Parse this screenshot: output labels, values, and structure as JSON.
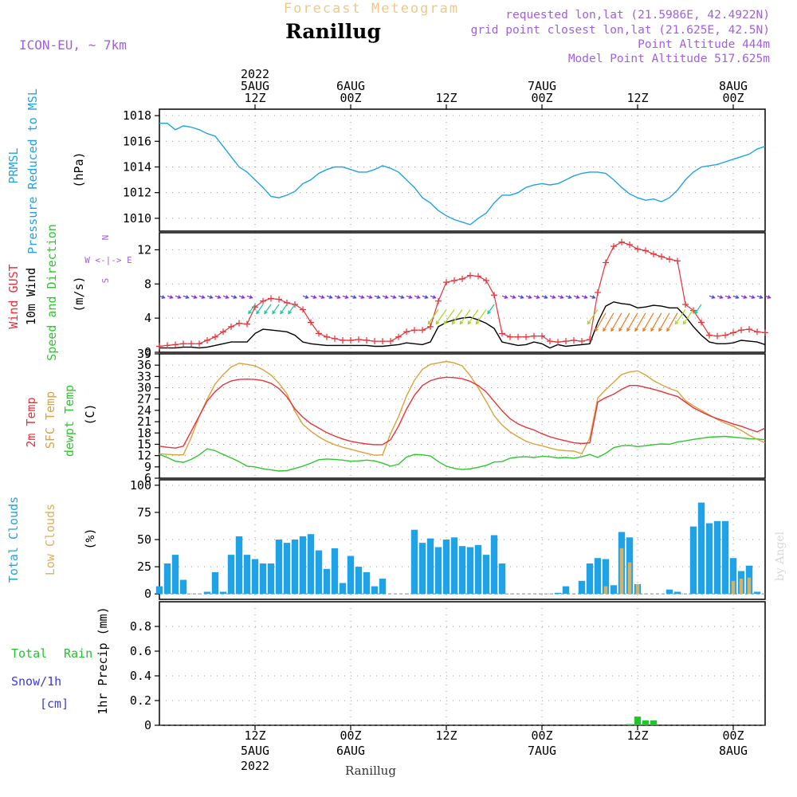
{
  "header": {
    "product_title": "Forecast Meteogram",
    "location": "Ranillug",
    "model": "ICON-EU, ~ 7km",
    "requested": "requested lon,lat (21.5986E, 42.4922N)",
    "gridpoint": "grid point closest lon,lat (21.625E, 42.5N)",
    "point_alt": "Point Altitude 444m",
    "model_alt": "Model Point Altitude 517.625m",
    "footer_location": "Ranillug",
    "credit": "by Angel"
  },
  "colors": {
    "pressure": "#1fa3e6",
    "gust": "#e8333a",
    "wind10m": "#000000",
    "t2m": "#e8333a",
    "sfc": "#dca23c",
    "dewpt": "#2ec82e",
    "total_clouds": "#1fa3e6",
    "low_clouds": "#d9b060",
    "rain": "#22c42e",
    "snow": "#3b3bdd",
    "purple_text": "#a060e0",
    "grid": "#999999"
  },
  "time_axis": {
    "top_labels": [
      {
        "hour": 12,
        "lines": [
          "2022",
          "5AUG",
          "12Z"
        ]
      },
      {
        "hour": 24,
        "lines": [
          "6AUG",
          "00Z"
        ]
      },
      {
        "hour": 36,
        "lines": [
          "12Z"
        ]
      },
      {
        "hour": 48,
        "lines": [
          "7AUG",
          "00Z"
        ]
      },
      {
        "hour": 60,
        "lines": [
          "12Z"
        ]
      },
      {
        "hour": 72,
        "lines": [
          "8AUG",
          "00Z"
        ]
      }
    ],
    "bottom_labels": [
      {
        "hour": 12,
        "lines": [
          "12Z",
          "5AUG",
          "2022"
        ]
      },
      {
        "hour": 24,
        "lines": [
          "00Z",
          "6AUG"
        ]
      },
      {
        "hour": 36,
        "lines": [
          "12Z"
        ]
      },
      {
        "hour": 48,
        "lines": [
          "00Z",
          "7AUG"
        ]
      },
      {
        "hour": 60,
        "lines": [
          "12Z"
        ]
      },
      {
        "hour": 72,
        "lines": [
          "00Z",
          "8AUG"
        ]
      }
    ],
    "range_hours": [
      0,
      76
    ]
  },
  "panel_labels": {
    "pressure": {
      "lines": [
        "PRMSL",
        "Pressure Reduced to MSL"
      ],
      "unit": "(hPa)"
    },
    "wind": {
      "gust": "Wind GUST",
      "w10": "10m Wind",
      "dir": "Speed and Direction",
      "unit": "(m/s)",
      "compass_n": "N",
      "compass_s": "S",
      "compass_row": "W <-|-> E"
    },
    "temp": {
      "t2m": "2m Temp",
      "sfc": "SFC Temp",
      "dew": "dewpt Temp",
      "unit": "(C)"
    },
    "clouds": {
      "total": "Total Clouds",
      "low": "Low Clouds",
      "unit": "(%)"
    },
    "precip": {
      "unit": "1hr Precip (mm)",
      "rain_a": "Total",
      "rain_b": "Rain",
      "snow": "Snow/1h",
      "snow_unit": "[cm]"
    }
  },
  "chart_data": [
    {
      "type": "line",
      "name": "pressure",
      "ylim": [
        1009,
        1018.5
      ],
      "yticks": [
        1010,
        1012,
        1014,
        1016,
        1018
      ],
      "x": [
        0,
        1,
        2,
        3,
        4,
        5,
        6,
        7,
        8,
        9,
        10,
        11,
        12,
        13,
        14,
        15,
        16,
        17,
        18,
        19,
        20,
        21,
        22,
        23,
        24,
        25,
        26,
        27,
        28,
        29,
        30,
        31,
        32,
        33,
        34,
        35,
        36,
        37,
        38,
        39,
        40,
        41,
        42,
        43,
        44,
        45,
        46,
        47,
        48,
        49,
        50,
        51,
        52,
        53,
        54,
        55,
        56,
        57,
        58,
        59,
        60,
        61,
        62,
        63,
        64,
        65,
        66,
        67,
        68,
        69,
        70,
        71,
        72,
        73,
        74,
        75,
        76
      ],
      "y": [
        1017.4,
        1017.4,
        1016.9,
        1017.2,
        1017.1,
        1016.9,
        1016.6,
        1016.4,
        1015.6,
        1014.8,
        1014.0,
        1013.6,
        1013.0,
        1012.4,
        1011.7,
        1011.6,
        1011.8,
        1012.1,
        1012.7,
        1013.0,
        1013.5,
        1013.8,
        1014.0,
        1014.0,
        1013.8,
        1013.6,
        1013.6,
        1013.8,
        1014.1,
        1013.9,
        1013.6,
        1013.0,
        1012.4,
        1011.6,
        1011.2,
        1010.6,
        1010.2,
        1009.9,
        1009.7,
        1009.5,
        1010.0,
        1010.4,
        1011.2,
        1011.8,
        1011.8,
        1012.0,
        1012.4,
        1012.6,
        1012.7,
        1012.6,
        1012.7,
        1013.0,
        1013.3,
        1013.5,
        1013.6,
        1013.6,
        1013.5,
        1013.0,
        1012.4,
        1011.9,
        1011.6,
        1011.4,
        1011.5,
        1011.3,
        1011.6,
        1012.2,
        1013.0,
        1013.6,
        1014.0,
        1014.1,
        1014.2,
        1014.4,
        1014.6,
        1014.8,
        1015.0,
        1015.4,
        1015.6
      ]
    },
    {
      "type": "line",
      "name": "wind",
      "ylim": [
        0,
        14
      ],
      "yticks": [
        0,
        4,
        8,
        12
      ],
      "x": [
        0,
        1,
        2,
        3,
        4,
        5,
        6,
        7,
        8,
        9,
        10,
        11,
        12,
        13,
        14,
        15,
        16,
        17,
        18,
        19,
        20,
        21,
        22,
        23,
        24,
        25,
        26,
        27,
        28,
        29,
        30,
        31,
        32,
        33,
        34,
        35,
        36,
        37,
        38,
        39,
        40,
        41,
        42,
        43,
        44,
        45,
        46,
        47,
        48,
        49,
        50,
        51,
        52,
        53,
        54,
        55,
        56,
        57,
        58,
        59,
        60,
        61,
        62,
        63,
        64,
        65,
        66,
        67,
        68,
        69,
        70,
        71,
        72,
        73,
        74,
        75,
        76
      ],
      "gust": [
        0.7,
        0.8,
        0.9,
        1.0,
        1.0,
        1.0,
        1.4,
        1.8,
        2.4,
        3.0,
        3.4,
        3.3,
        5.3,
        6.0,
        6.3,
        6.2,
        5.8,
        5.6,
        5.0,
        3.5,
        2.2,
        1.8,
        1.6,
        1.4,
        1.4,
        1.5,
        1.4,
        1.3,
        1.3,
        1.3,
        1.8,
        2.4,
        2.6,
        2.6,
        3.0,
        6.0,
        8.2,
        8.4,
        8.6,
        9.0,
        8.9,
        8.4,
        6.7,
        2.2,
        1.8,
        1.8,
        1.8,
        1.9,
        1.9,
        1.3,
        1.2,
        1.3,
        1.4,
        1.3,
        1.5,
        7.0,
        10.5,
        12.4,
        12.9,
        12.6,
        12.1,
        11.9,
        11.5,
        11.2,
        10.9,
        10.7,
        5.6,
        4.9,
        3.5,
        2.0,
        1.9,
        2.0,
        2.3,
        2.6,
        2.7,
        2.4,
        2.3
      ],
      "wind10m": [
        0.5,
        0.5,
        0.5,
        0.6,
        0.6,
        0.5,
        0.6,
        0.8,
        1.0,
        1.2,
        1.2,
        1.2,
        2.2,
        2.7,
        2.6,
        2.5,
        2.4,
        2.0,
        1.2,
        1.0,
        0.9,
        0.8,
        0.8,
        0.8,
        0.8,
        0.8,
        0.8,
        0.7,
        0.7,
        0.8,
        0.9,
        1.1,
        1.0,
        0.9,
        1.2,
        3.0,
        3.5,
        3.8,
        4.0,
        4.1,
        3.8,
        3.4,
        2.8,
        1.2,
        1.0,
        0.8,
        0.9,
        1.2,
        1.0,
        0.5,
        0.9,
        0.7,
        0.8,
        0.9,
        1.0,
        3.5,
        5.4,
        5.9,
        5.7,
        5.6,
        5.2,
        5.3,
        5.5,
        5.4,
        5.2,
        5.2,
        4.2,
        3.0,
        2.0,
        1.2,
        1.0,
        1.0,
        1.1,
        1.4,
        1.3,
        1.2,
        0.9
      ]
    },
    {
      "type": "line",
      "name": "temperature",
      "ylim": [
        6,
        39
      ],
      "yticks": [
        6,
        9,
        12,
        15,
        18,
        21,
        24,
        27,
        30,
        33,
        36,
        39
      ],
      "x": [
        0,
        1,
        2,
        3,
        4,
        5,
        6,
        7,
        8,
        9,
        10,
        11,
        12,
        13,
        14,
        15,
        16,
        17,
        18,
        19,
        20,
        21,
        22,
        23,
        24,
        25,
        26,
        27,
        28,
        29,
        30,
        31,
        32,
        33,
        34,
        35,
        36,
        37,
        38,
        39,
        40,
        41,
        42,
        43,
        44,
        45,
        46,
        47,
        48,
        49,
        50,
        51,
        52,
        53,
        54,
        55,
        56,
        57,
        58,
        59,
        60,
        61,
        62,
        63,
        64,
        65,
        66,
        67,
        68,
        69,
        70,
        71,
        72,
        73,
        74,
        75,
        76
      ],
      "t2m": [
        14.5,
        14.2,
        14.0,
        14.5,
        18.5,
        22.5,
        26.5,
        29.0,
        30.8,
        31.8,
        32.2,
        32.3,
        32.2,
        31.9,
        31.2,
        29.8,
        27.6,
        24.4,
        22.2,
        20.5,
        19.3,
        18.1,
        17.2,
        16.4,
        15.8,
        15.4,
        15.1,
        14.9,
        14.9,
        16.2,
        19.8,
        24.3,
        28.0,
        30.6,
        31.9,
        32.5,
        32.8,
        32.7,
        32.4,
        31.7,
        30.6,
        28.9,
        26.4,
        23.9,
        21.8,
        20.4,
        19.5,
        18.8,
        17.8,
        17.0,
        16.4,
        15.9,
        15.4,
        15.2,
        15.4,
        26.2,
        27.4,
        28.3,
        29.6,
        30.6,
        30.6,
        30.1,
        29.6,
        29.0,
        28.3,
        27.7,
        26.2,
        24.7,
        23.6,
        22.6,
        21.8,
        21.1,
        20.4,
        19.8,
        19.0,
        18.3,
        19.3
      ],
      "sfc": [
        12.5,
        12.3,
        12.2,
        12.2,
        16.8,
        22.5,
        27.0,
        31.0,
        33.5,
        35.5,
        36.5,
        36.2,
        35.8,
        34.8,
        33.4,
        31.2,
        28.4,
        23.8,
        20.3,
        18.5,
        17.0,
        15.8,
        14.9,
        14.2,
        13.7,
        13.1,
        12.6,
        12.1,
        12.2,
        17.8,
        22.3,
        27.8,
        32.0,
        34.9,
        36.2,
        36.6,
        37.0,
        36.6,
        35.8,
        33.2,
        30.0,
        26.4,
        22.6,
        20.1,
        18.3,
        17.0,
        15.8,
        15.1,
        14.6,
        14.0,
        13.5,
        13.3,
        13.2,
        12.5,
        16.7,
        27.3,
        29.5,
        31.5,
        33.5,
        34.2,
        34.5,
        33.4,
        31.9,
        30.8,
        29.8,
        29.1,
        26.6,
        25.2,
        24.0,
        22.8,
        21.6,
        20.6,
        19.8,
        18.7,
        17.4,
        16.3,
        15.4
      ],
      "dewpt": [
        12.3,
        11.5,
        10.5,
        10.2,
        11.0,
        12.2,
        13.8,
        13.3,
        12.3,
        11.4,
        10.4,
        9.2,
        9.0,
        8.5,
        8.2,
        7.9,
        8.0,
        8.6,
        9.2,
        10.0,
        10.9,
        11.1,
        11.0,
        10.8,
        10.5,
        10.6,
        10.8,
        10.6,
        10.0,
        9.2,
        9.7,
        11.6,
        12.3,
        12.2,
        11.9,
        10.4,
        9.2,
        8.6,
        8.3,
        8.5,
        8.9,
        9.4,
        10.3,
        10.4,
        11.3,
        11.6,
        11.7,
        11.5,
        11.8,
        11.7,
        11.4,
        11.5,
        11.3,
        11.7,
        12.3,
        11.5,
        12.6,
        14.1,
        14.6,
        14.7,
        14.4,
        14.6,
        14.9,
        15.1,
        15.0,
        15.6,
        15.9,
        16.3,
        16.6,
        16.9,
        17.0,
        17.1,
        16.9,
        16.7,
        16.5,
        16.4,
        16.2
      ]
    },
    {
      "type": "bar",
      "name": "clouds",
      "ylim": [
        -5,
        105
      ],
      "yticks": [
        0,
        25,
        50,
        75,
        100
      ],
      "x": [
        0,
        1,
        2,
        3,
        4,
        5,
        6,
        7,
        8,
        9,
        10,
        11,
        12,
        13,
        14,
        15,
        16,
        17,
        18,
        19,
        20,
        21,
        22,
        23,
        24,
        25,
        26,
        27,
        28,
        29,
        30,
        31,
        32,
        33,
        34,
        35,
        36,
        37,
        38,
        39,
        40,
        41,
        42,
        43,
        44,
        45,
        46,
        47,
        48,
        49,
        50,
        51,
        52,
        53,
        54,
        55,
        56,
        57,
        58,
        59,
        60,
        61,
        62,
        63,
        64,
        65,
        66,
        67,
        68,
        69,
        70,
        71,
        72,
        73,
        74,
        75,
        76
      ],
      "total": [
        7,
        28,
        36,
        13,
        0,
        0,
        2,
        20,
        2,
        36,
        53,
        36,
        32,
        28,
        28,
        50,
        47,
        50,
        53,
        55,
        40,
        23,
        42,
        10,
        35,
        25,
        20,
        7,
        14,
        0,
        0,
        0,
        59,
        47,
        51,
        43,
        50,
        52,
        44,
        43,
        45,
        36,
        54,
        28,
        0,
        0,
        0,
        0,
        0,
        0,
        1,
        7,
        0,
        12,
        28,
        33,
        32,
        8,
        57,
        52,
        9,
        0,
        0,
        0,
        4,
        2,
        0,
        62,
        84,
        65,
        67,
        67,
        33,
        21,
        26,
        2,
        0
      ],
      "low": [
        0,
        0,
        0,
        0,
        0,
        0,
        0,
        0,
        0,
        0,
        0,
        0,
        0,
        0,
        0,
        0,
        0,
        0,
        0,
        0,
        0,
        0,
        0,
        0,
        0,
        0,
        0,
        0,
        0,
        0,
        0,
        0,
        0,
        0,
        0,
        0,
        0,
        0,
        0,
        0,
        0,
        0,
        0,
        0,
        0,
        0,
        0,
        0,
        0,
        0,
        0,
        0,
        0,
        0,
        0,
        0,
        7,
        0,
        42,
        29,
        9,
        0,
        0,
        0,
        0,
        0,
        0,
        0,
        0,
        0,
        0,
        0,
        12,
        14,
        15,
        0,
        0
      ]
    },
    {
      "type": "bar",
      "name": "precip",
      "ylim": [
        0,
        1.0
      ],
      "yticks": [
        0,
        0.2,
        0.4,
        0.6,
        0.8
      ],
      "x": [
        59,
        60,
        61,
        62
      ],
      "rain": [
        0.01,
        0.07,
        0.04,
        0.04
      ]
    }
  ]
}
